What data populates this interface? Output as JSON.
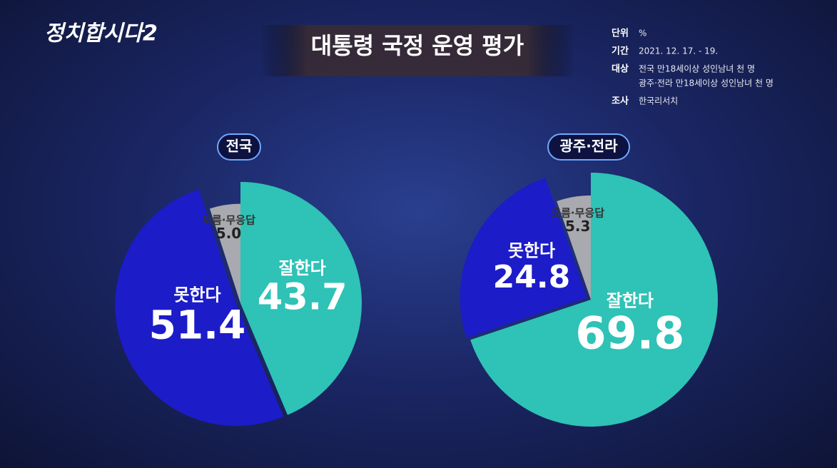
{
  "logo": "정치합시다2",
  "title": "대통령 국정 운영 평가",
  "info": [
    {
      "label": "단위",
      "lines": [
        "%"
      ]
    },
    {
      "label": "기간",
      "lines": [
        "2021. 12. 17. - 19."
      ]
    },
    {
      "label": "대상",
      "lines": [
        "전국 만18세이상 성인남녀 천 명",
        "광주·전라 만18세이상 성인남녀 천 명"
      ]
    },
    {
      "label": "조사",
      "lines": [
        "한국리서치"
      ]
    }
  ],
  "chart_data": [
    {
      "type": "pie",
      "title": "전국",
      "categories": [
        "잘한다",
        "못한다",
        "모름·무응답"
      ],
      "values": [
        43.7,
        51.4,
        5.0
      ],
      "value_labels": [
        "43.7",
        "51.4",
        "5.0"
      ],
      "colors": [
        "#2fc2b6",
        "#1c1cc9",
        "#a9a9b0"
      ]
    },
    {
      "type": "pie",
      "title": "광주·전라",
      "categories": [
        "잘한다",
        "못한다",
        "모름·무응답"
      ],
      "values": [
        69.8,
        24.8,
        5.3
      ],
      "value_labels": [
        "69.8",
        "24.8",
        "5.3"
      ],
      "colors": [
        "#2fc2b6",
        "#1c1cc9",
        "#a9a9b0"
      ]
    }
  ]
}
